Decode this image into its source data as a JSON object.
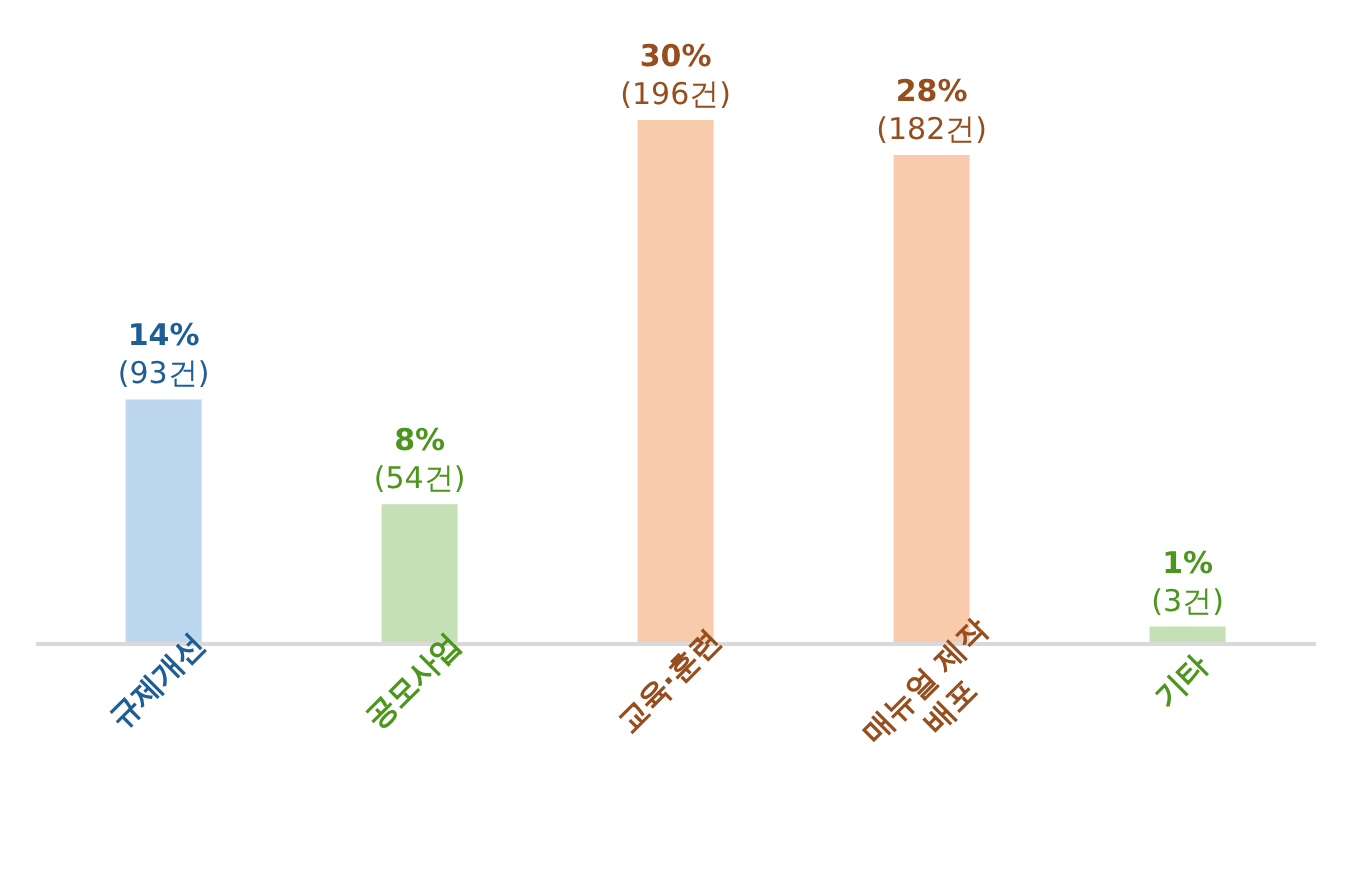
{
  "chart_data": {
    "type": "bar",
    "categories": [
      "규제개선",
      "공모사업",
      "교육·훈련",
      "매뉴얼 제작\n배포",
      "기타"
    ],
    "values": [
      14,
      8,
      30,
      28,
      1
    ],
    "colors": [
      "#bdd7ee",
      "#c5e0b4",
      "#f8cbad",
      "#f8cbad",
      "#c5e0b4"
    ],
    "value_labels": [
      "14%\n(93건)",
      "8%\n(54건)",
      "30%\n(196건)",
      "28%\n(182건)",
      "1%\n(3건)"
    ],
    "grid": false,
    "legend": false
  }
}
